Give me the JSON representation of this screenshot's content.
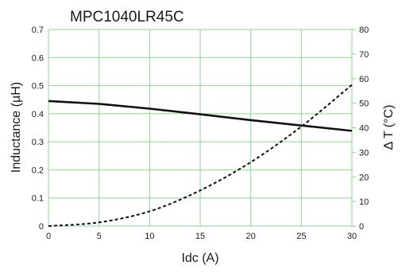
{
  "chart_data": {
    "type": "line",
    "title": "MPC1040LR45C",
    "xlabel": "Idc (A)",
    "ylabel_left": "Inductance (µH)",
    "ylabel_right": "Δ T (°C)",
    "xlim": [
      0,
      30
    ],
    "ylim_left": [
      0,
      0.7
    ],
    "ylim_right": [
      0,
      80
    ],
    "x_ticks": [
      "0",
      "5",
      "10",
      "15",
      "20",
      "25",
      "30"
    ],
    "y_left_ticks": [
      "0",
      "0.1",
      "0.2",
      "0.3",
      "0.4",
      "0.5",
      "0.6",
      "0.7"
    ],
    "y_right_ticks": [
      "0",
      "10",
      "20",
      "30",
      "40",
      "50",
      "60",
      "70",
      "80"
    ],
    "grid": true,
    "grid_color": "#8fd68f",
    "series": [
      {
        "axis": "left",
        "style": "solid",
        "color": "#111111",
        "x": [
          0,
          5,
          10,
          15,
          20,
          25,
          30
        ],
        "y": [
          0.445,
          0.435,
          0.418,
          0.398,
          0.377,
          0.358,
          0.339
        ]
      },
      {
        "axis": "right",
        "style": "dashed",
        "color": "#111111",
        "x": [
          0,
          5,
          10,
          15,
          20,
          25,
          30
        ],
        "y": [
          0,
          1.5,
          6,
          14.5,
          26,
          40.5,
          57.5
        ]
      }
    ]
  }
}
